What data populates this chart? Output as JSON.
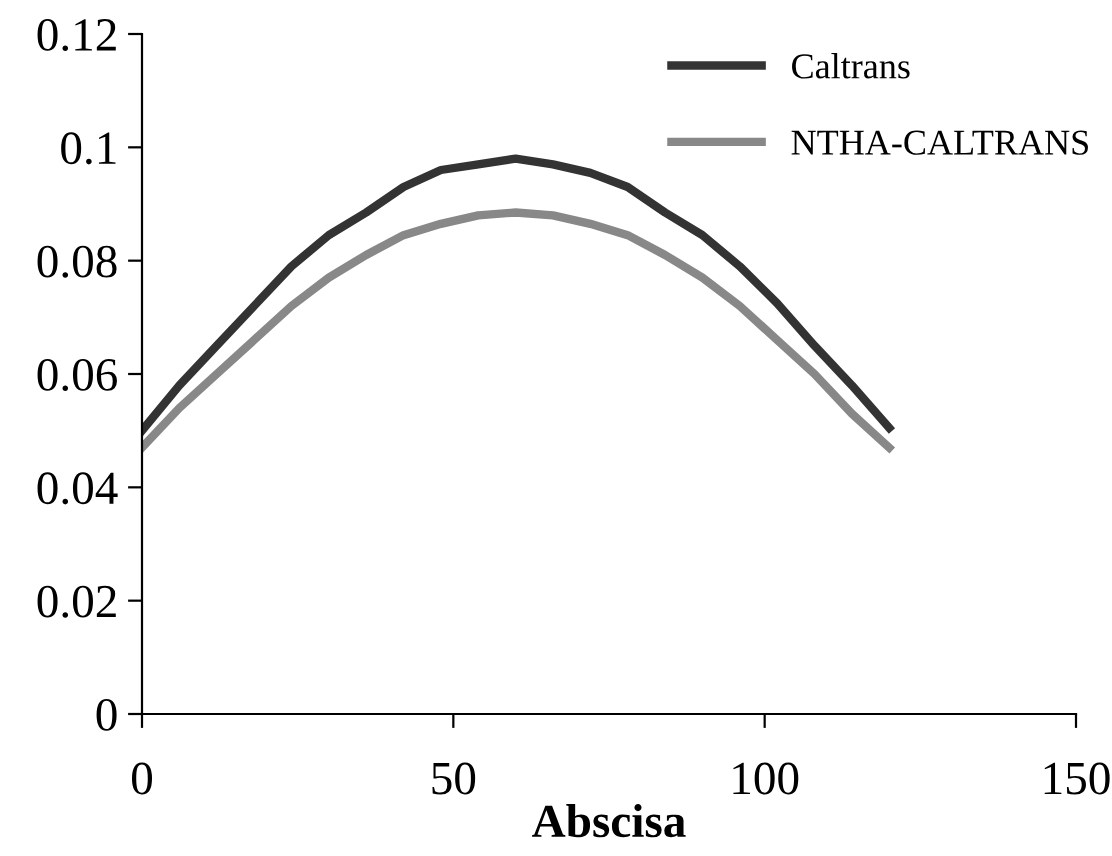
{
  "chart_data": {
    "type": "line",
    "xlabel": "Abscisa",
    "x": [
      0,
      6,
      12,
      18,
      24,
      30,
      36,
      42,
      48,
      54,
      60,
      66,
      72,
      78,
      84,
      90,
      96,
      102,
      108,
      114,
      120
    ],
    "series": [
      {
        "name": "Caltrans",
        "color": "#333333",
        "values": [
          0.05,
          0.058,
          0.065,
          0.072,
          0.079,
          0.0845,
          0.0885,
          0.093,
          0.096,
          0.097,
          0.098,
          0.097,
          0.0955,
          0.093,
          0.0885,
          0.0845,
          0.079,
          0.0725,
          0.065,
          0.058,
          0.0505
        ]
      },
      {
        "name": "NTHA-CALTRANS",
        "color": "#888888",
        "values": [
          0.047,
          0.054,
          0.06,
          0.066,
          0.072,
          0.077,
          0.081,
          0.0845,
          0.0865,
          0.088,
          0.0885,
          0.088,
          0.0865,
          0.0845,
          0.081,
          0.077,
          0.072,
          0.066,
          0.06,
          0.053,
          0.047
        ]
      }
    ],
    "xlim": [
      0,
      150
    ],
    "xticks": [
      0,
      50,
      100,
      150
    ],
    "ylim": [
      0,
      0.12
    ],
    "yticks": [
      0,
      0.02,
      0.04,
      0.06,
      0.08,
      0.1,
      0.12
    ],
    "legend": "top right",
    "grid": false,
    "marker": "none",
    "line_style": "solid"
  }
}
